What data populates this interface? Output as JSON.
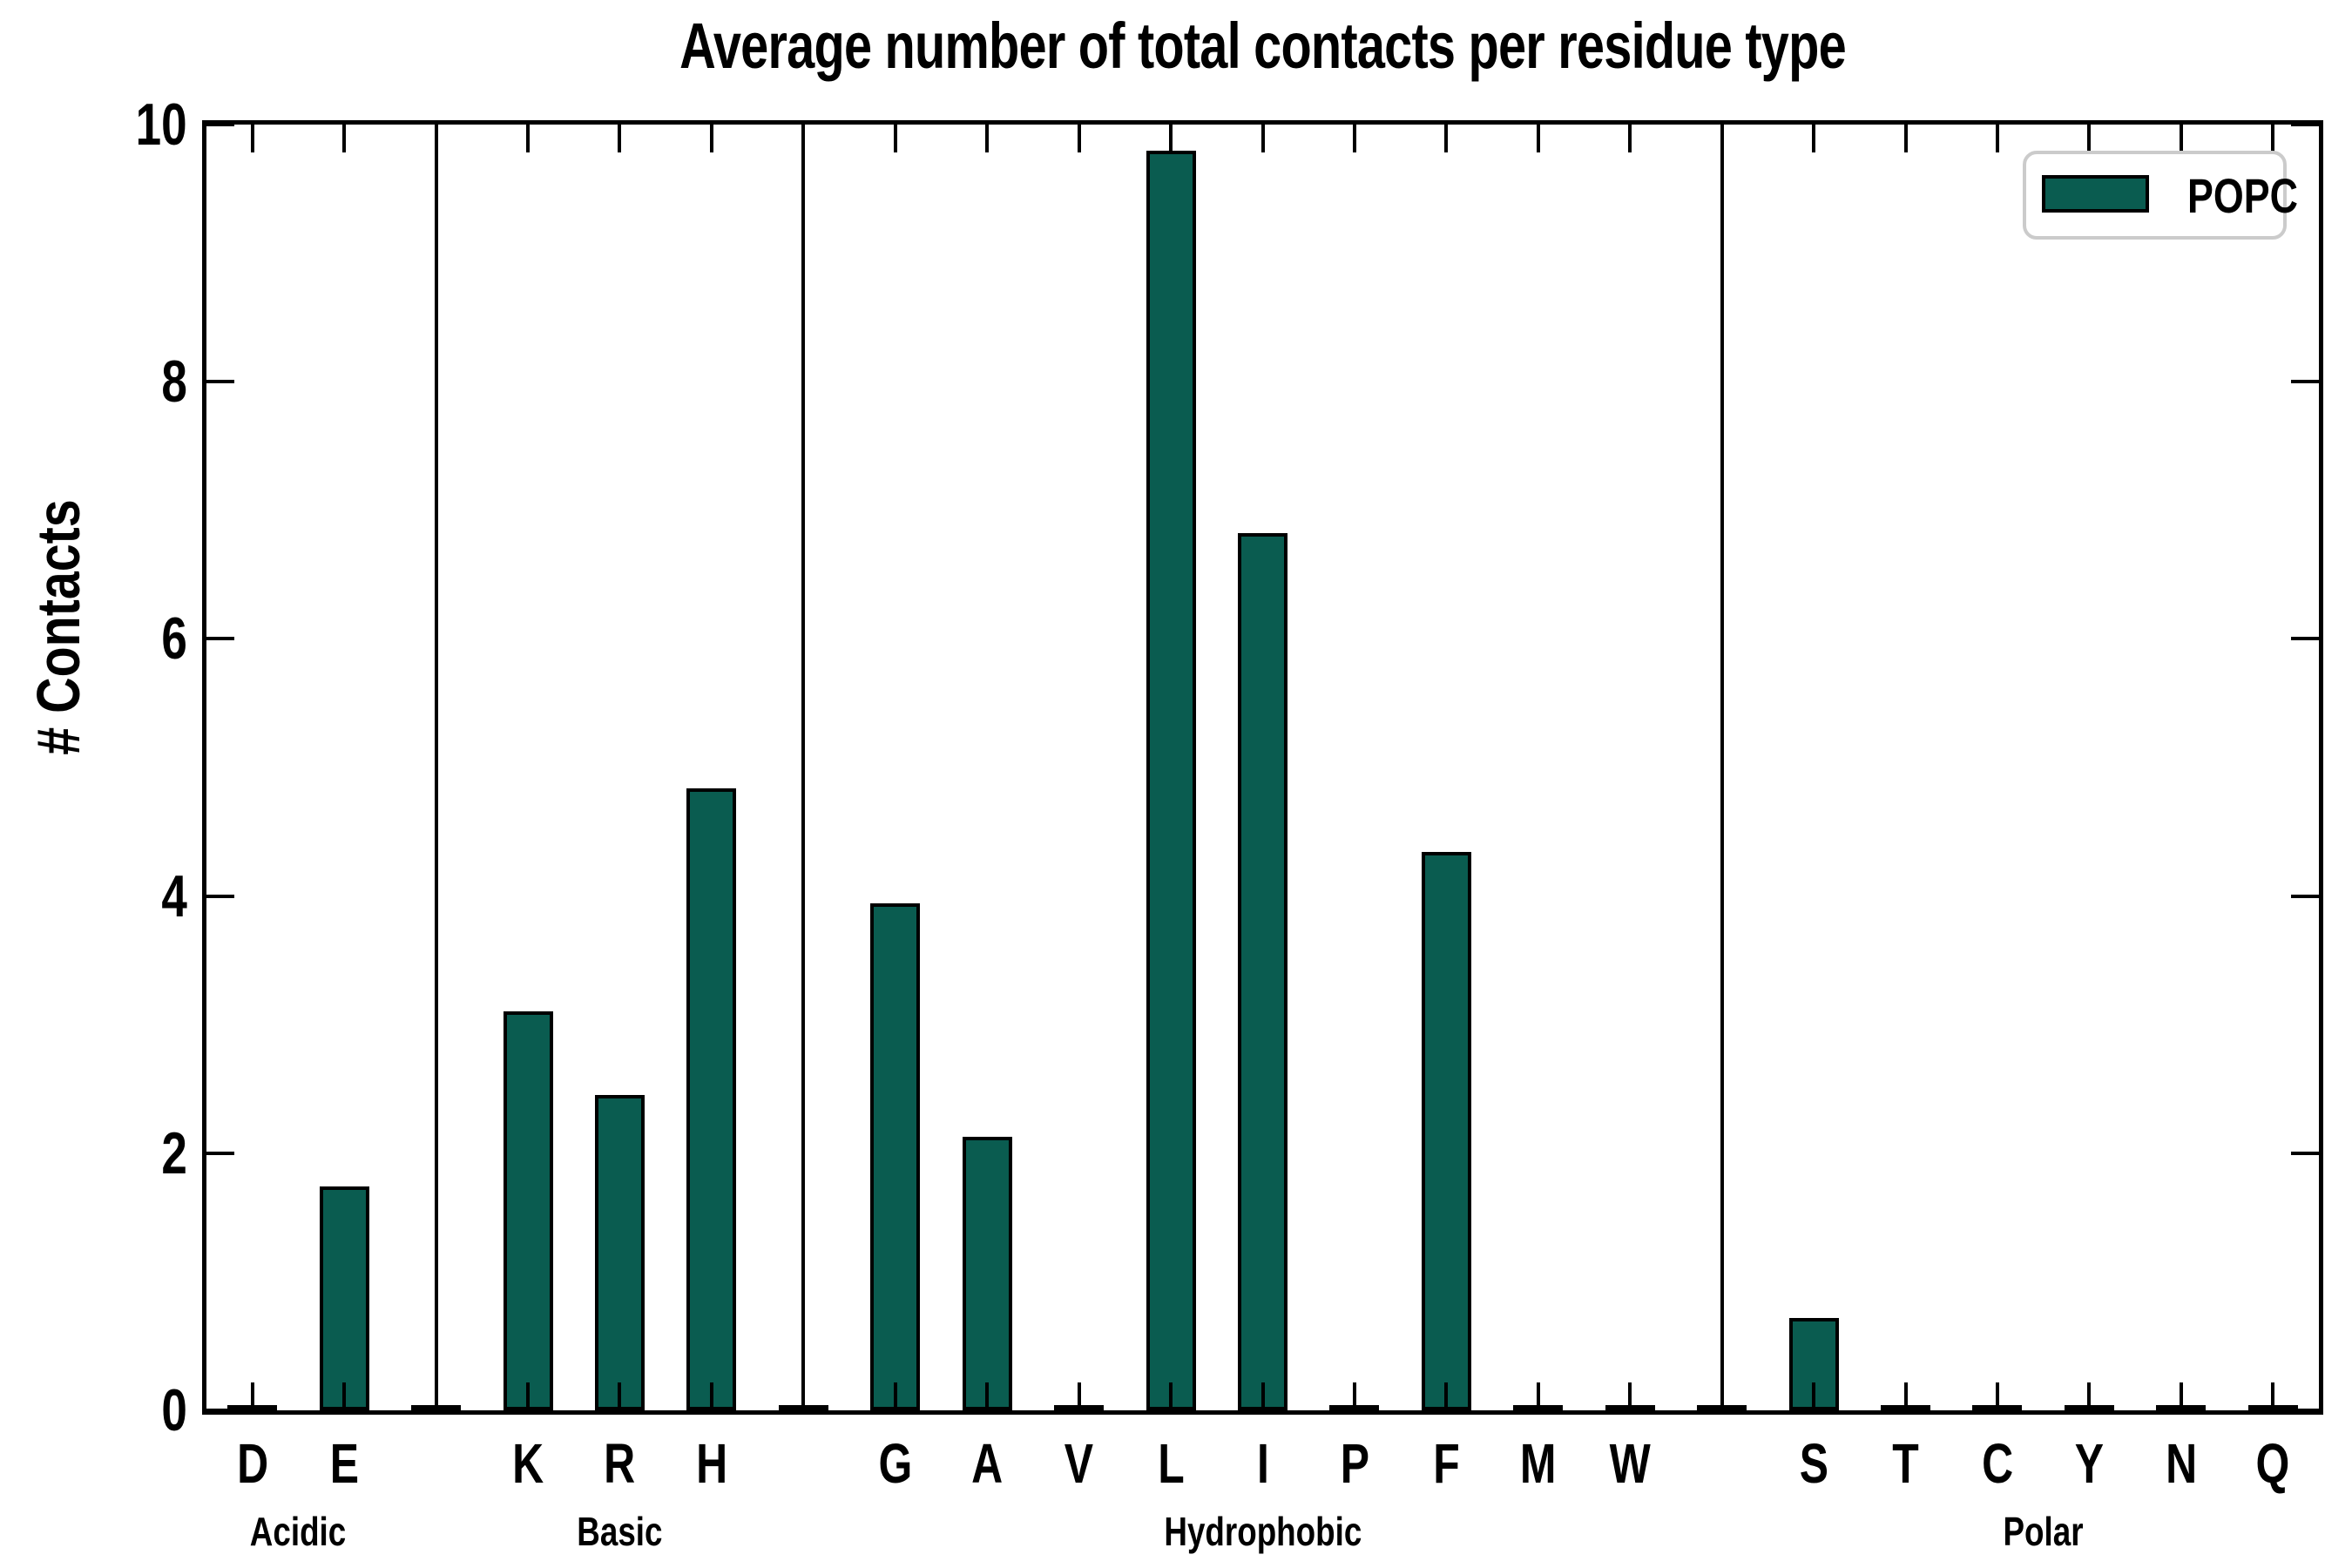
{
  "title": "Average number of total contacts per residue type",
  "ylabel": "# Contacts",
  "legend": {
    "label": "POPC"
  },
  "colors": {
    "bar_fill": "#0a5c50",
    "bar_edge": "#000000",
    "axis": "#000000",
    "legend_border": "#cbcbcb",
    "background": "#ffffff",
    "text": "#000000"
  },
  "chart_data": {
    "type": "bar",
    "title": "Average number of total contacts per residue type",
    "xlabel": "",
    "ylabel": "# Contacts",
    "ylim": [
      0,
      10
    ],
    "yticks": [
      0,
      2,
      4,
      6,
      8,
      10
    ],
    "grid": false,
    "legend_entries": [
      "POPC"
    ],
    "legend_position": "upper right",
    "bar_color": "#0a5c50",
    "bar_edge_color": "#000000",
    "group_separators": true,
    "spacer_value": 0.02,
    "groups": [
      {
        "label": "Acidic",
        "categories": [
          "D",
          "E"
        ],
        "values": [
          0.02,
          1.74
        ]
      },
      {
        "label": "Basic",
        "categories": [
          "K",
          "R",
          "H"
        ],
        "values": [
          3.1,
          2.45,
          4.84
        ]
      },
      {
        "label": "Hydrophobic",
        "categories": [
          "G",
          "A",
          "V",
          "L",
          "I",
          "P",
          "F",
          "M",
          "W"
        ],
        "values": [
          3.94,
          2.13,
          0.02,
          9.8,
          6.82,
          0.02,
          4.34,
          0.02,
          0.02
        ]
      },
      {
        "label": "Polar",
        "categories": [
          "S",
          "T",
          "C",
          "Y",
          "N",
          "Q"
        ],
        "values": [
          0.72,
          0.02,
          0.02,
          0.02,
          0.02,
          0.02
        ]
      }
    ]
  }
}
